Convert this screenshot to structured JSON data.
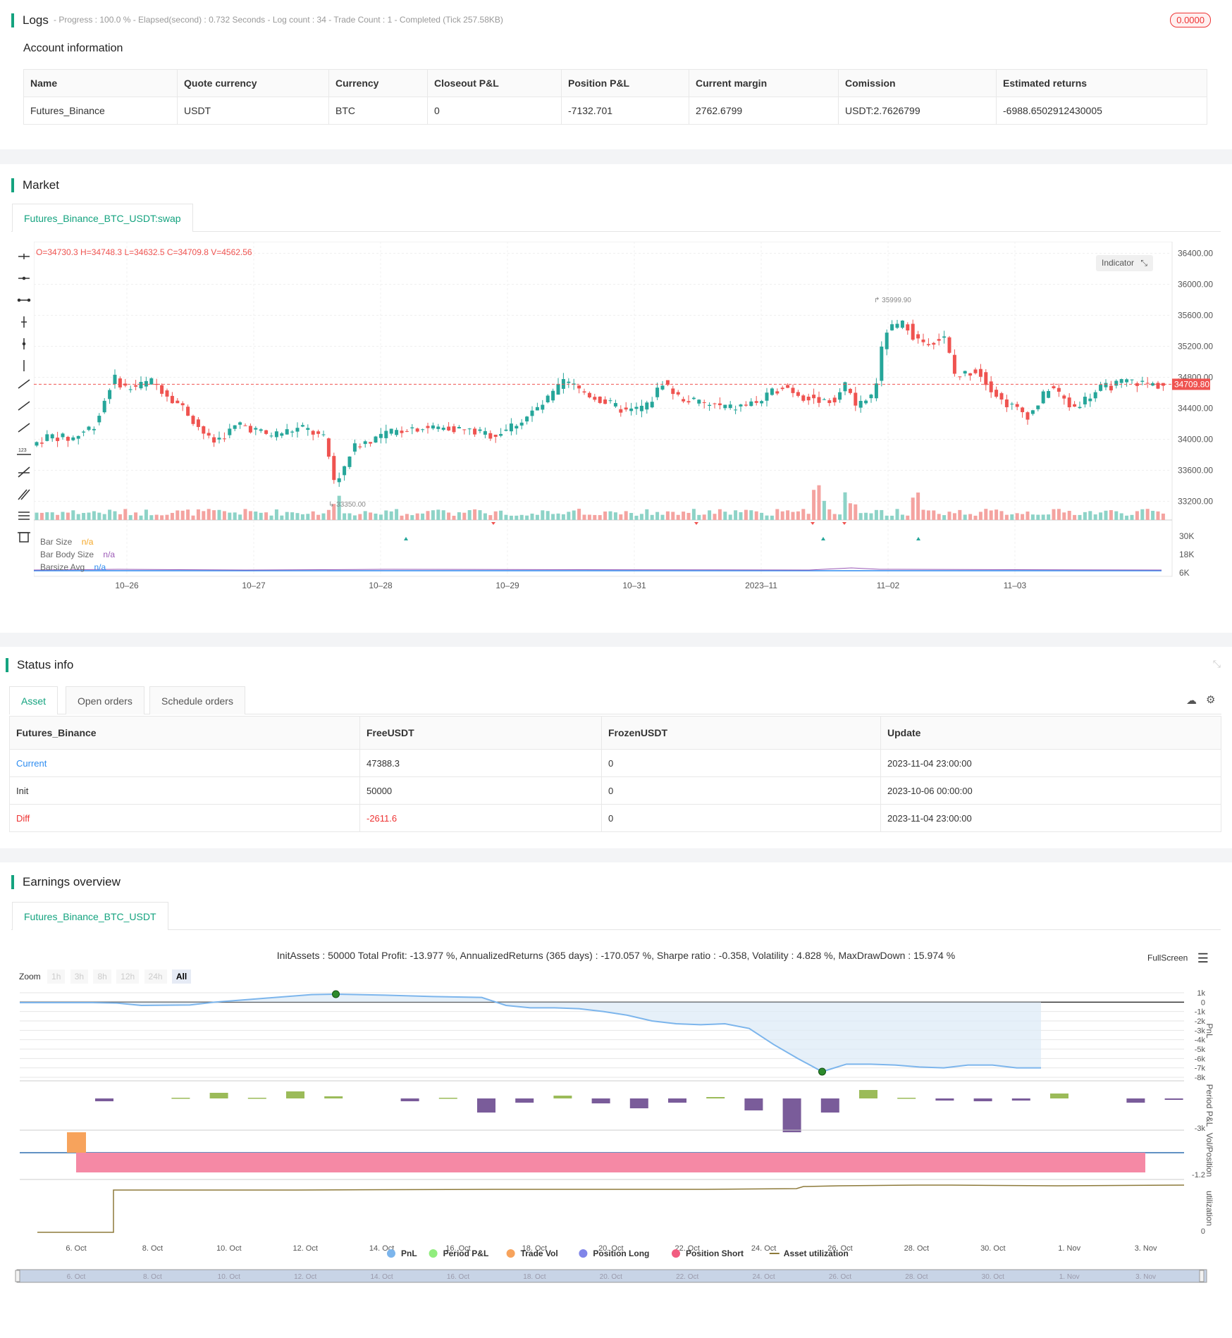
{
  "logs": {
    "title": "Logs",
    "meta": "- Progress : 100.0 % - Elapsed(second) : 0.732  Seconds - Log count : 34 - Trade Count : 1 - Completed (Tick 257.58KB)",
    "badge": "0.0000"
  },
  "account": {
    "title": "Account information",
    "headers": [
      "Name",
      "Quote currency",
      "Currency",
      "Closeout P&L",
      "Position P&L",
      "Current margin",
      "Comission",
      "Estimated returns"
    ],
    "row": [
      "Futures_Binance",
      "USDT",
      "BTC",
      "0",
      "-7132.701",
      "2762.6799",
      "USDT:2.7626799",
      "-6988.6502912430005"
    ]
  },
  "market": {
    "title": "Market",
    "tab": "Futures_Binance_BTC_USDT:swap",
    "ohlc": "O=34730.3 H=34748.3 L=34632.5 C=34709.8 V=4562.56",
    "indicator_btn": "Indicator",
    "price_label": "34709.80",
    "high_label": "35999.90",
    "low_label": "33350.00",
    "y_ticks": [
      "36400.00",
      "36000.00",
      "35600.00",
      "35200.00",
      "34800.00",
      "34400.00",
      "34000.00",
      "33600.00",
      "33200.00"
    ],
    "sub_ticks": [
      "30K",
      "18K",
      "6K"
    ],
    "x_ticks": [
      "10–26",
      "10–27",
      "10–28",
      "10–29",
      "10–31",
      "2023–11",
      "11–02",
      "11–03"
    ],
    "legend": [
      {
        "name": "Bar Size",
        "value": "n/a",
        "color": "#f5a623"
      },
      {
        "name": "Bar Body Size",
        "value": "n/a",
        "color": "#9b59b6"
      },
      {
        "name": "Barsize Avg",
        "value": "n/a",
        "color": "#2d8cf0"
      }
    ],
    "colors": {
      "up": "#26a69a",
      "down": "#ef5350"
    }
  },
  "status": {
    "title": "Status info",
    "tabs": [
      "Asset",
      "Open orders",
      "Schedule orders"
    ],
    "headers": [
      "Futures_Binance",
      "FreeUSDT",
      "FrozenUSDT",
      "Update"
    ],
    "rows": [
      [
        "Current",
        "47388.3",
        "0",
        "2023-11-04 23:00:00"
      ],
      [
        "Init",
        "50000",
        "0",
        "2023-10-06 00:00:00"
      ],
      [
        "Diff",
        "-2611.6",
        "0",
        "2023-11-04 23:00:00"
      ]
    ]
  },
  "earnings": {
    "title": "Earnings overview",
    "tab": "Futures_Binance_BTC_USDT",
    "summary": "InitAssets : 50000 Total Profit: -13.977 %, AnnualizedReturns (365 days) : -170.057 %, Sharpe ratio : -0.358, Volatility : 4.828 %, MaxDrawDown : 15.974 %",
    "fullscreen": "FullScreen",
    "zoom_label": "Zoom",
    "zoom_opts": [
      "1h",
      "3h",
      "8h",
      "12h",
      "24h",
      "All"
    ],
    "pnl_ticks": [
      "1k",
      "0",
      "-1k",
      "-2k",
      "-3k",
      "-4k",
      "-5k",
      "-6k",
      "-7k",
      "-8k"
    ],
    "period_tick": "-3k",
    "vol_tick": "-1.2",
    "util_tick": "0",
    "axis_titles": [
      "PnL",
      "Period P&L",
      "Vol/Position",
      "utilization"
    ],
    "x_ticks": [
      "6. Oct",
      "8. Oct",
      "10. Oct",
      "12. Oct",
      "14. Oct",
      "16. Oct",
      "18. Oct",
      "20. Oct",
      "22. Oct",
      "24. Oct",
      "26. Oct",
      "28. Oct",
      "30. Oct",
      "1. Nov",
      "3. Nov"
    ],
    "legend": [
      {
        "name": "PnL",
        "color": "#7cb5ec"
      },
      {
        "name": "Period P&L",
        "color": "#90ed7d"
      },
      {
        "name": "Trade Vol",
        "color": "#f7a35c"
      },
      {
        "name": "Position Long",
        "color": "#8085e9"
      },
      {
        "name": "Position Short",
        "color": "#f15c80"
      },
      {
        "name": "Asset utilization",
        "color": "#8d7a3a"
      }
    ]
  }
}
